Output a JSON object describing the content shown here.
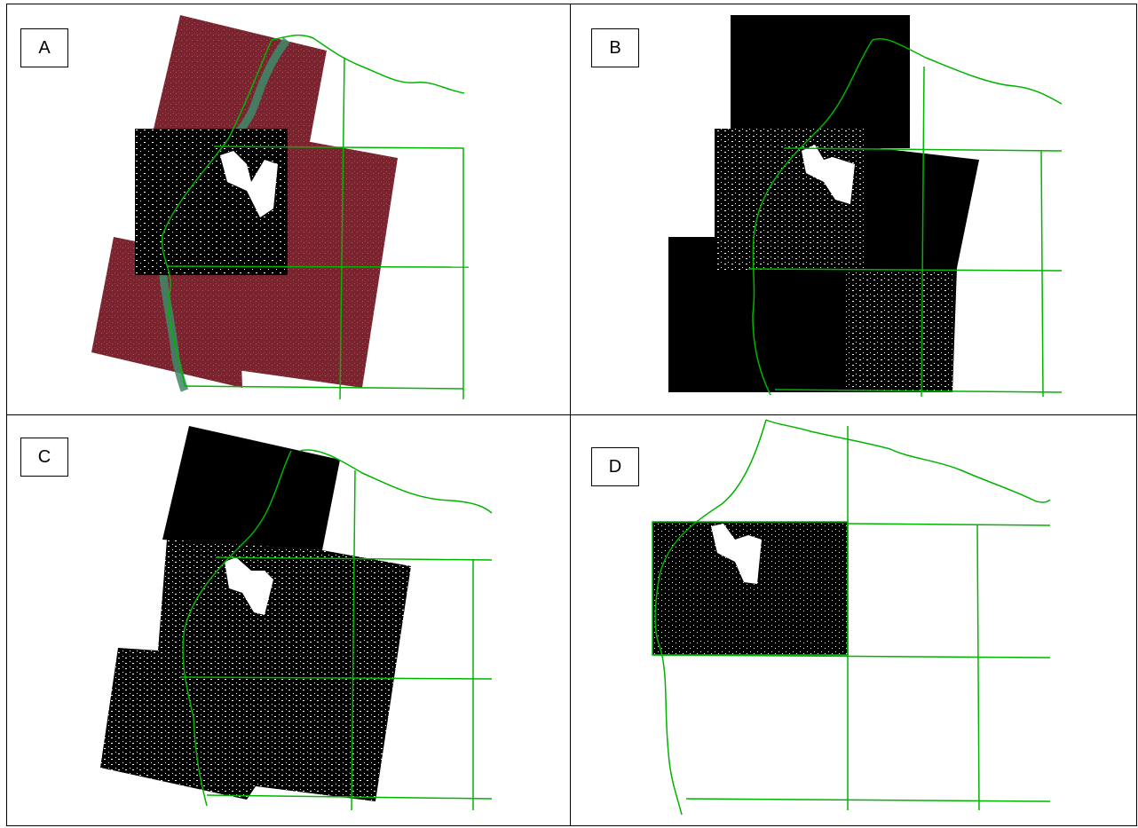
{
  "panels": [
    {
      "id": "A",
      "label": "A"
    },
    {
      "id": "B",
      "label": "B"
    },
    {
      "id": "C",
      "label": "C"
    },
    {
      "id": "D",
      "label": "D"
    }
  ],
  "colors": {
    "border_line": "#00b400",
    "satellite_red": "#7a2430",
    "river": "#3d8a6a",
    "mask_black": "#000000",
    "cloud_white": "#ffffff"
  },
  "icons": [
    "satellite-scene",
    "cloud-mask",
    "border-line",
    "river"
  ]
}
